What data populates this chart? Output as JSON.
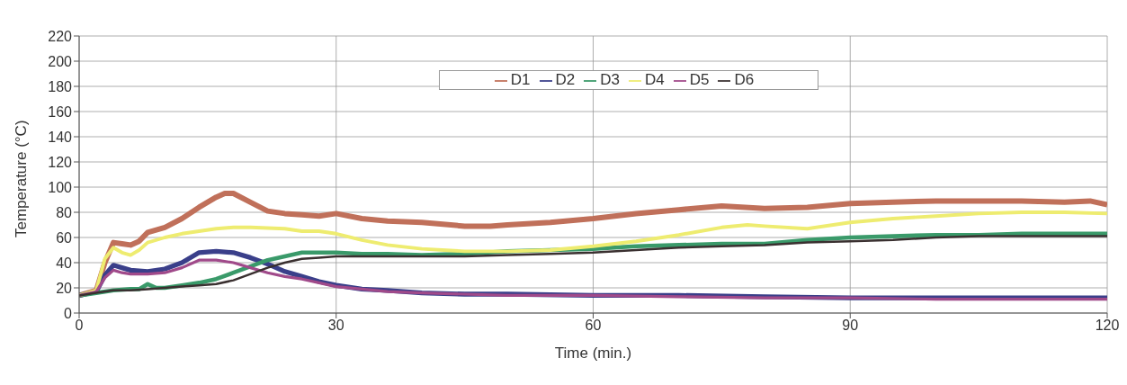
{
  "chart_data": {
    "type": "line",
    "xlabel": "Time (min.)",
    "ylabel": "Temperature (°C)",
    "xlim": [
      0,
      120
    ],
    "xticks": [
      0,
      30,
      60,
      90,
      120
    ],
    "ylim": [
      0,
      220
    ],
    "yticks": [
      0,
      20,
      40,
      60,
      80,
      100,
      120,
      140,
      160,
      180,
      200,
      220
    ],
    "grid": true,
    "legend": "top",
    "marker": "none",
    "line_style": "solid",
    "series": [
      {
        "name": "D1",
        "color": "#c0705a",
        "x": [
          0,
          2,
          3,
          4,
          5,
          6,
          7,
          8,
          10,
          12,
          14,
          16,
          17,
          18,
          20,
          22,
          24,
          26,
          28,
          30,
          33,
          36,
          40,
          45,
          48,
          50,
          55,
          60,
          65,
          70,
          75,
          80,
          85,
          90,
          95,
          100,
          105,
          110,
          115,
          118,
          120
        ],
        "values": [
          14,
          18,
          40,
          56,
          55,
          54,
          57,
          64,
          68,
          75,
          84,
          92,
          95,
          95,
          88,
          81,
          79,
          78,
          77,
          79,
          75,
          73,
          72,
          69,
          69,
          70,
          72,
          75,
          79,
          82,
          85,
          83,
          84,
          87,
          88,
          89,
          89,
          89,
          88,
          89,
          86
        ]
      },
      {
        "name": "D2",
        "color": "#3a3f8a",
        "x": [
          0,
          2,
          3,
          4,
          5,
          6,
          8,
          10,
          12,
          14,
          16,
          18,
          20,
          22,
          24,
          26,
          28,
          30,
          33,
          36,
          40,
          45,
          50,
          60,
          70,
          80,
          90,
          100,
          110,
          120
        ],
        "values": [
          14,
          17,
          30,
          38,
          36,
          34,
          33,
          35,
          40,
          48,
          49,
          48,
          44,
          39,
          33,
          29,
          25,
          22,
          19,
          18,
          16,
          15,
          15,
          14,
          14,
          13,
          12,
          12,
          12,
          12
        ]
      },
      {
        "name": "D3",
        "color": "#3a9a6a",
        "x": [
          0,
          2,
          4,
          6,
          7,
          8,
          9,
          10,
          12,
          14,
          16,
          18,
          20,
          22,
          24,
          26,
          28,
          30,
          33,
          36,
          40,
          45,
          50,
          55,
          60,
          65,
          70,
          75,
          80,
          85,
          90,
          95,
          100,
          105,
          110,
          115,
          120
        ],
        "values": [
          14,
          16,
          18,
          19,
          19,
          23,
          20,
          20,
          22,
          24,
          27,
          32,
          37,
          42,
          45,
          48,
          48,
          48,
          47,
          47,
          46,
          47,
          49,
          50,
          51,
          53,
          54,
          55,
          55,
          58,
          60,
          61,
          62,
          62,
          63,
          63,
          63
        ]
      },
      {
        "name": "D4",
        "color": "#eeec70",
        "x": [
          0,
          2,
          3,
          4,
          5,
          6,
          7,
          8,
          10,
          12,
          14,
          16,
          18,
          20,
          24,
          26,
          28,
          30,
          33,
          36,
          40,
          45,
          50,
          55,
          60,
          65,
          70,
          75,
          78,
          80,
          85,
          90,
          95,
          100,
          105,
          110,
          115,
          120
        ],
        "values": [
          14,
          18,
          43,
          52,
          48,
          46,
          50,
          56,
          60,
          63,
          65,
          67,
          68,
          68,
          67,
          65,
          65,
          63,
          58,
          54,
          51,
          49,
          49,
          50,
          53,
          57,
          62,
          68,
          70,
          69,
          67,
          72,
          75,
          77,
          79,
          80,
          80,
          79
        ]
      },
      {
        "name": "D5",
        "color": "#a04a8a",
        "x": [
          0,
          2,
          3,
          4,
          5,
          6,
          8,
          10,
          12,
          14,
          16,
          18,
          20,
          22,
          24,
          26,
          28,
          30,
          33,
          36,
          40,
          45,
          50,
          60,
          70,
          80,
          90,
          100,
          110,
          120
        ],
        "values": [
          14,
          17,
          28,
          34,
          32,
          31,
          31,
          32,
          36,
          42,
          42,
          40,
          36,
          32,
          29,
          27,
          24,
          21,
          19,
          17,
          16,
          15,
          14,
          14,
          13,
          12,
          12,
          11,
          11,
          11
        ]
      },
      {
        "name": "D6",
        "color": "#3a3030",
        "x": [
          0,
          2,
          4,
          6,
          8,
          10,
          12,
          14,
          16,
          18,
          20,
          22,
          24,
          26,
          28,
          30,
          33,
          36,
          40,
          45,
          50,
          55,
          60,
          65,
          70,
          75,
          80,
          85,
          90,
          95,
          100,
          105,
          110,
          115,
          120
        ],
        "values": [
          14,
          16,
          18,
          18,
          19,
          20,
          21,
          22,
          23,
          26,
          31,
          36,
          40,
          43,
          44,
          45,
          45,
          45,
          45,
          45,
          46,
          47,
          48,
          50,
          52,
          53,
          54,
          56,
          57,
          58,
          60,
          61,
          61,
          61,
          61
        ]
      }
    ]
  }
}
